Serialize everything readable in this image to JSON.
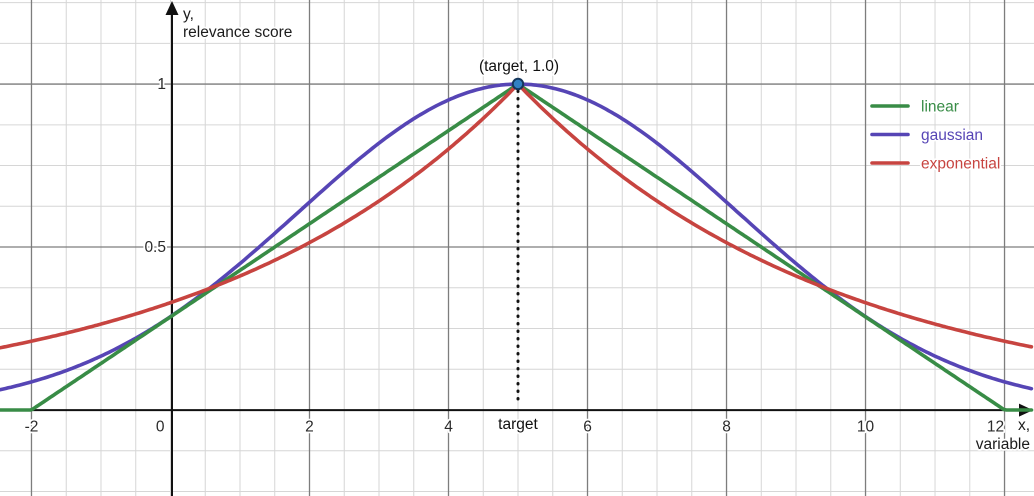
{
  "chart_data": {
    "type": "line",
    "title": "",
    "x_axis": {
      "label_line1": "x,",
      "label_line2": "variable",
      "tick_values": [
        -2,
        0,
        2,
        4,
        6,
        8,
        10,
        12
      ],
      "tick_labels": [
        "-2",
        "0",
        "2",
        "4",
        "6",
        "8",
        "10",
        "12"
      ],
      "range": [
        -2.453,
        12.424
      ],
      "special_tick_label": "target",
      "special_tick_value": 5
    },
    "y_axis": {
      "label_line1": "y,",
      "label_line2": "relevance score",
      "tick_values": [
        0.5,
        1
      ],
      "tick_labels": [
        "0.5",
        "1"
      ],
      "range": [
        -0.264,
        1.258
      ]
    },
    "grid": {
      "visible": true,
      "minor_x_step": 0.5,
      "minor_y_step": 0.125,
      "major_x_step": 2,
      "major_y_step": 0.5,
      "minor_color": "#d6d6d6",
      "major_color": "#7d7d7d",
      "axis_color": "#111111"
    },
    "point": {
      "x": 5,
      "y": 1.0,
      "label": "(target, 1.0)",
      "fill": "#3180c3",
      "stroke": "#14365c"
    },
    "target_line": {
      "x": 5,
      "style": "dotted",
      "color": "#111111"
    },
    "x_values": [
      -2,
      -1,
      0,
      1,
      2,
      3,
      4,
      5,
      6,
      7,
      8,
      9,
      10,
      11,
      12
    ],
    "series": [
      {
        "name": "linear",
        "color": "#388c46",
        "formula": "y = max(0, 1 - |x - 5| / 7)",
        "params": {
          "type": "linear",
          "center": 5,
          "halfwidth": 7
        },
        "values": [
          0,
          0.143,
          0.286,
          0.429,
          0.571,
          0.714,
          0.857,
          1.0,
          0.857,
          0.714,
          0.571,
          0.429,
          0.286,
          0.143,
          0
        ]
      },
      {
        "name": "gaussian",
        "color": "#5645b5",
        "formula": "y = exp(-(x - 5)^2 / 20)",
        "params": {
          "type": "gaussian",
          "center": 5,
          "two_sigma_sq": 20
        },
        "values": [
          0.086,
          0.165,
          0.287,
          0.449,
          0.638,
          0.819,
          0.951,
          1.0,
          0.951,
          0.819,
          0.638,
          0.449,
          0.287,
          0.165,
          0.086
        ]
      },
      {
        "name": "exponential",
        "color": "#c74440",
        "formula": "y = exp(-|x - 5| / 4.5)",
        "params": {
          "type": "exponential",
          "center": 5,
          "lambda": 4.5
        },
        "values": [
          0.211,
          0.264,
          0.329,
          0.411,
          0.513,
          0.641,
          0.801,
          1.0,
          0.801,
          0.641,
          0.513,
          0.411,
          0.329,
          0.264,
          0.211
        ]
      }
    ],
    "legend": {
      "position": "top-right",
      "items": [
        {
          "label": "linear",
          "color": "#388c46"
        },
        {
          "label": "gaussian",
          "color": "#5645b5"
        },
        {
          "label": "exponential",
          "color": "#c74440"
        }
      ]
    }
  }
}
